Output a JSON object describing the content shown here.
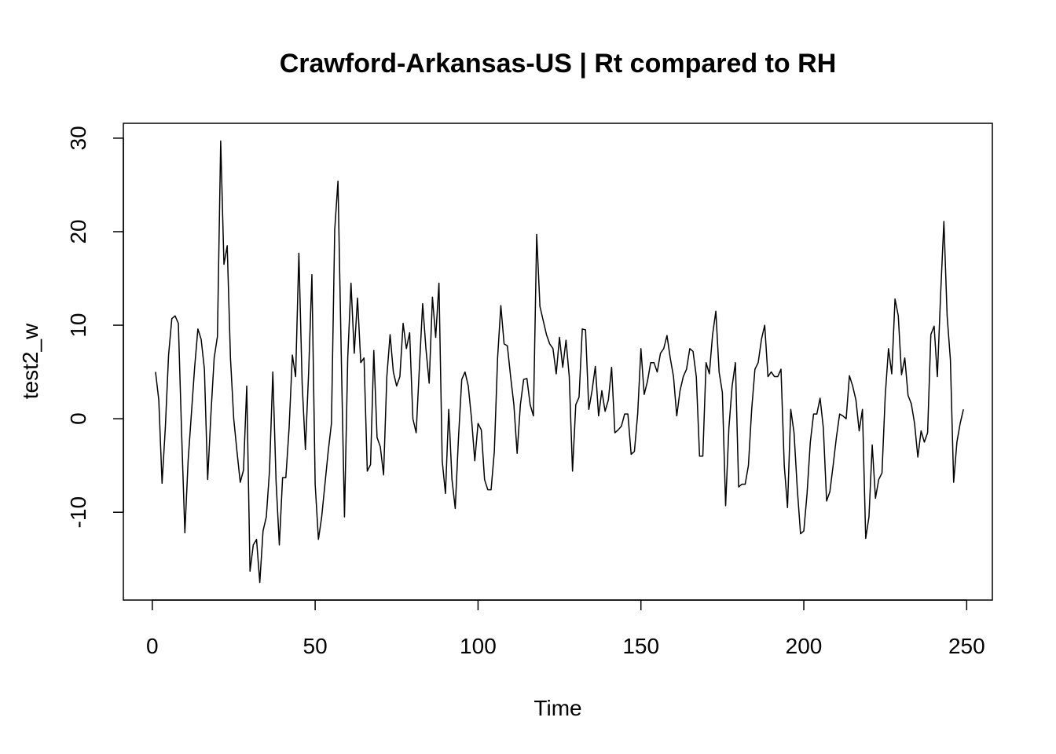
{
  "chart_data": {
    "type": "line",
    "title": "Crawford-Arkansas-US | Rt compared to RH",
    "xlabel": "Time",
    "ylabel": "test2_w",
    "xlim": [
      1,
      248
    ],
    "ylim": [
      -17.5,
      29.7
    ],
    "x_ticks": [
      0,
      50,
      100,
      150,
      200,
      250
    ],
    "y_ticks": [
      -10,
      0,
      10,
      20,
      30
    ],
    "x_tick_labels": [
      "0",
      "50",
      "100",
      "150",
      "200",
      "250"
    ],
    "y_tick_labels": [
      "-10",
      "0",
      "10",
      "20",
      "30"
    ],
    "grid": false,
    "series": [
      {
        "x_start": 1,
        "x_step": 1,
        "color": "#000000",
        "values": [
          5.0,
          2.0,
          -6.9,
          -1.0,
          6.8,
          10.7,
          11.0,
          10.2,
          -1.5,
          -12.2,
          -4.5,
          0.5,
          5.5,
          9.6,
          8.5,
          5.3,
          -6.5,
          0.5,
          6.5,
          8.8,
          29.7,
          16.5,
          18.5,
          6.5,
          0.0,
          -3.5,
          -6.8,
          -5.5,
          3.5,
          -16.3,
          -13.5,
          -12.9,
          -17.5,
          -12.0,
          -10.5,
          -5.5,
          5.0,
          -6.7,
          -13.5,
          -6.3,
          -6.3,
          -1.0,
          6.8,
          4.5,
          17.7,
          3.8,
          -3.3,
          5.0,
          15.4,
          -7.0,
          -12.9,
          -10.5,
          -7.0,
          -3.5,
          -0.5,
          20.2,
          25.4,
          7.0,
          -10.5,
          6.5,
          14.5,
          7.0,
          12.9,
          6.0,
          6.5,
          -5.6,
          -4.9,
          7.3,
          -2.0,
          -3.0,
          -6.0,
          4.5,
          9.0,
          5.0,
          3.5,
          4.5,
          10.2,
          7.5,
          9.2,
          0.0,
          -1.5,
          5.5,
          12.3,
          7.5,
          3.8,
          13.0,
          8.7,
          14.5,
          -4.5,
          -8.0,
          1.0,
          -6.5,
          -9.6,
          -2.0,
          4.2,
          5.0,
          3.5,
          0.0,
          -4.5,
          -0.5,
          -1.2,
          -6.5,
          -7.6,
          -7.6,
          -3.5,
          6.5,
          12.1,
          8.0,
          7.8,
          4.5,
          1.5,
          -3.7,
          1.5,
          4.2,
          4.3,
          1.5,
          0.3,
          19.7,
          12.0,
          10.5,
          9.0,
          8.0,
          7.5,
          4.8,
          8.7,
          5.5,
          8.4,
          4.5,
          -5.6,
          1.5,
          2.3,
          9.6,
          9.5,
          1.0,
          3.0,
          5.6,
          0.3,
          3.0,
          0.8,
          2.0,
          5.5,
          -1.5,
          -1.2,
          -0.8,
          0.5,
          0.5,
          -3.8,
          -3.5,
          0.5,
          7.5,
          2.6,
          4.0,
          6.0,
          6.0,
          5.0,
          7.0,
          7.5,
          8.9,
          6.5,
          4.5,
          0.3,
          3.0,
          4.5,
          5.3,
          7.5,
          7.2,
          4.5,
          -4.0,
          -4.0,
          6.0,
          4.8,
          9.0,
          11.5,
          5.0,
          2.8,
          -9.3,
          -1.0,
          3.5,
          6.0,
          -7.3,
          -7.0,
          -7.0,
          -5.0,
          1.0,
          5.3,
          6.0,
          8.5,
          10.0,
          4.5,
          5.0,
          4.5,
          4.5,
          5.3,
          -5.0,
          -9.5,
          1.0,
          -1.5,
          -7.5,
          -12.3,
          -12.0,
          -8.0,
          -2.5,
          0.5,
          0.5,
          2.2,
          -1.0,
          -8.8,
          -7.8,
          -5.0,
          -2.0,
          0.5,
          0.3,
          0.0,
          4.6,
          3.5,
          2.0,
          -1.3,
          1.0,
          -12.8,
          -10.5,
          -2.8,
          -8.5,
          -6.5,
          -5.8,
          2.5,
          7.5,
          4.8,
          12.8,
          11.0,
          4.7,
          6.5,
          2.5,
          1.6,
          -0.5,
          -4.1,
          -1.3,
          -2.5,
          -1.5,
          9.0,
          9.9,
          4.5,
          13.3,
          21.1,
          11.0,
          6.3,
          -6.8,
          -2.5,
          -0.5,
          1.0
        ]
      }
    ]
  }
}
